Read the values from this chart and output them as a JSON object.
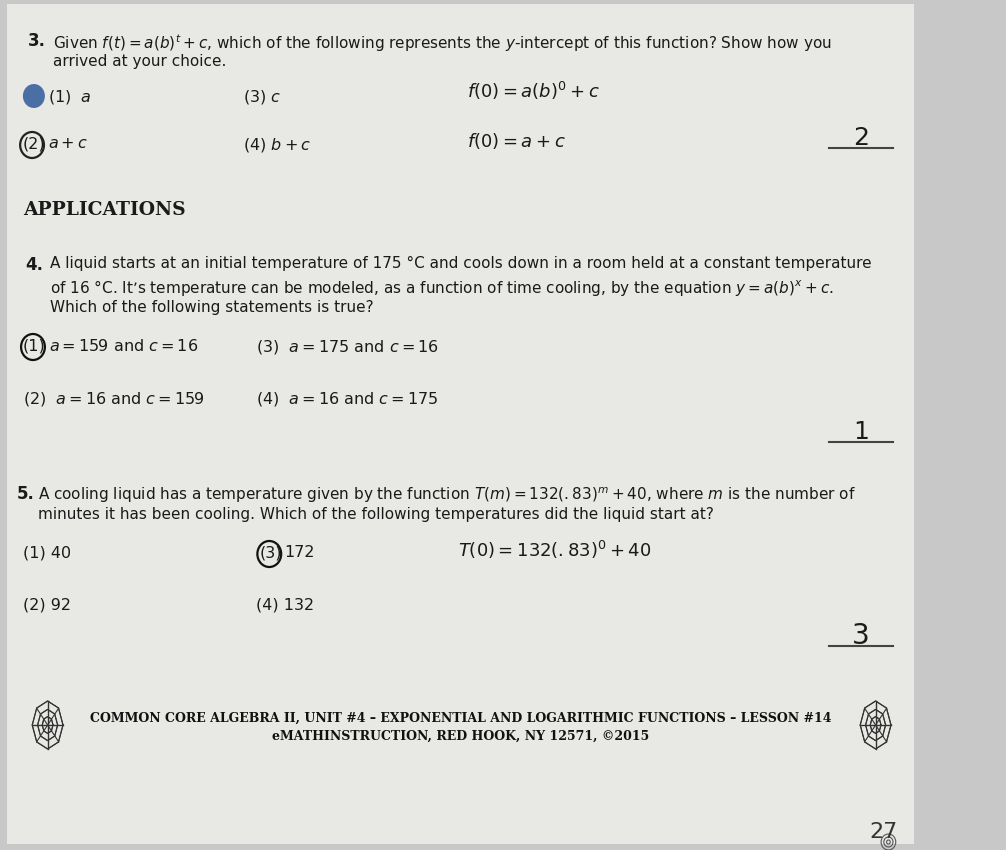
{
  "bg_outer": "#c8c8c8",
  "bg_page": "#e8e8e4",
  "text_color": "#1a1a1a",
  "title_footer": "COMMON CORE ALGEBRA II, UNIT #4 – EXPONENTIAL AND LOGARITHMIC FUNCTIONS – LESSON #14",
  "subtitle_footer": "eMATHINSTRUCTION, RED HOOK, NY 12571, ©2015",
  "page_number": "27",
  "q3_num": "3.",
  "q3_line1": "Given $f(t)=a(b)^t+c$, which of the following represents the $y$-intercept of this function? Show how you",
  "q3_line2": "arrived at your choice.",
  "q3_opt1": "(1)  $a$",
  "q3_opt2_num": "(2)",
  "q3_opt2_txt": "$a+c$",
  "q3_opt3": "(3) $c$",
  "q3_opt4": "(4) $b+c$",
  "q3_work1": "$f(0)= a(b)^0 +c$",
  "q3_work2": "$f(0)= a+c$",
  "q3_ans": "2",
  "apps_header": "APPLICATIONS",
  "q4_num": "4.",
  "q4_line1": "A liquid starts at an initial temperature of 175 °C and cools down in a room held at a constant temperature",
  "q4_line2": "of 16 °C. It’s temperature can be modeled, as a function of time cooling, by the equation $y=a(b)^x+c$.",
  "q4_line3": "Which of the following statements is true?",
  "q4_opt1_num": "(1)",
  "q4_opt1_txt": "$a=159$ and $c=16$",
  "q4_opt2": "(2)  $a=16$ and $c=159$",
  "q4_opt3": "(3)  $a=175$ and $c=16$",
  "q4_opt4": "(4)  $a=16$ and $c=175$",
  "q4_ans": "1",
  "q5_num": "5.",
  "q5_line1": "A cooling liquid has a temperature given by the function $T(m)=132(.83)^m+40$, where $m$ is the number of",
  "q5_line2": "minutes it has been cooling. Which of the following temperatures did the liquid start at?",
  "q5_opt1": "(1) 40",
  "q5_opt2": "(2) 92",
  "q5_opt3_num": "(3)",
  "q5_opt3_txt": "172",
  "q5_opt4": "(4) 132",
  "q5_work": "$T(0)= 132(.83)^0 +40$",
  "q5_ans": "3",
  "bullet_color": "#4a6fa5",
  "circle_color": "#222222",
  "line_color": "#555555"
}
